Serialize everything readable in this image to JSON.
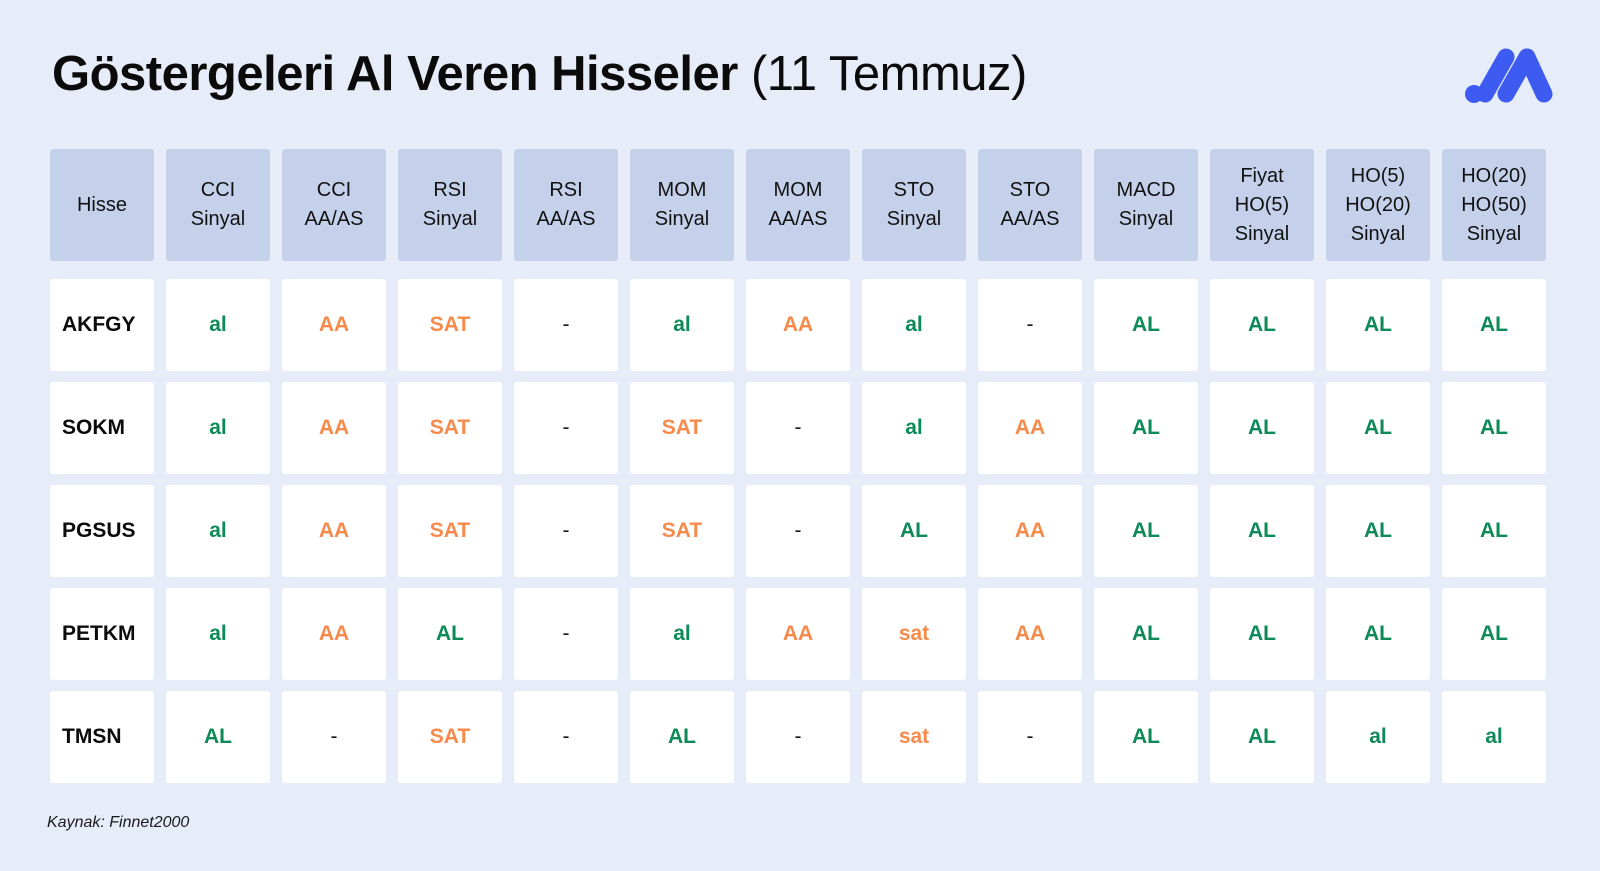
{
  "title": {
    "bold": "Göstergeleri Al Veren Hisseler",
    "light": "(11 Temmuz)"
  },
  "logo_icon": "brand-m-logo",
  "colors": {
    "background": "#E6EDF8",
    "header_cell": "#C5D1EA",
    "buy": "#0E8A5A",
    "sell": "#F58A4B",
    "logo": "#3D5AF1"
  },
  "table": {
    "headers": [
      "Hisse",
      "CCI\nSinyal",
      "CCI\nAA/AS",
      "RSI\nSinyal",
      "RSI\nAA/AS",
      "MOM\nSinyal",
      "MOM\nAA/AS",
      "STO\nSinyal",
      "STO\nAA/AS",
      "MACD\nSinyal",
      "Fiyat\nHO(5)\nSinyal",
      "HO(5)\nHO(20)\nSinyal",
      "HO(20)\nHO(50)\nSinyal"
    ],
    "rows": [
      {
        "name": "AKFGY",
        "cells": [
          "al",
          "AA",
          "SAT",
          "-",
          "al",
          "AA",
          "al",
          "-",
          "AL",
          "AL",
          "AL",
          "AL"
        ]
      },
      {
        "name": "SOKM",
        "cells": [
          "al",
          "AA",
          "SAT",
          "-",
          "SAT",
          "-",
          "al",
          "AA",
          "AL",
          "AL",
          "AL",
          "AL"
        ]
      },
      {
        "name": "PGSUS",
        "cells": [
          "al",
          "AA",
          "SAT",
          "-",
          "SAT",
          "-",
          "AL",
          "AA",
          "AL",
          "AL",
          "AL",
          "AL"
        ]
      },
      {
        "name": "PETKM",
        "cells": [
          "al",
          "AA",
          "AL",
          "-",
          "al",
          "AA",
          "sat",
          "AA",
          "AL",
          "AL",
          "AL",
          "AL"
        ]
      },
      {
        "name": "TMSN",
        "cells": [
          "AL",
          "-",
          "SAT",
          "-",
          "AL",
          "-",
          "sat",
          "-",
          "AL",
          "AL",
          "al",
          "al"
        ]
      }
    ]
  },
  "source": "Kaynak: Finnet2000"
}
